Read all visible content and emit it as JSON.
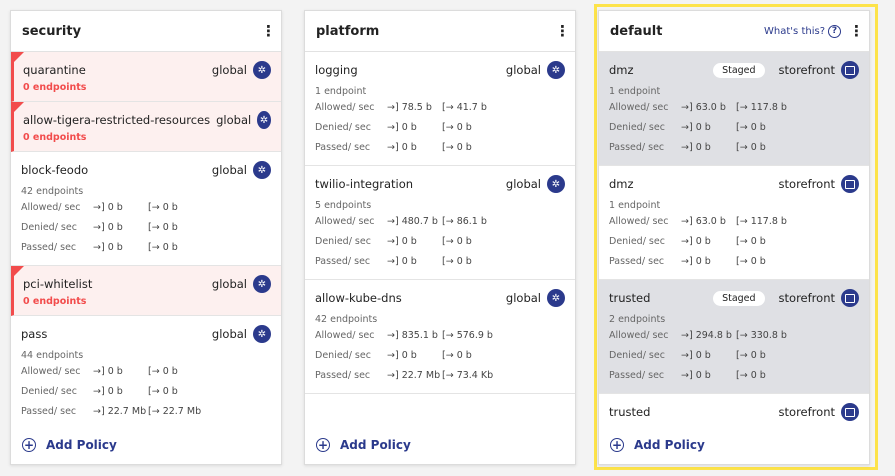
{
  "labels": {
    "allowed": "Allowed/ sec",
    "denied": "Denied/ sec",
    "passed": "Passed/ sec",
    "add_policy": "Add Policy",
    "whats_this": "What's this?",
    "in_arrow": "→]",
    "out_arrow": "[→"
  },
  "colors": {
    "accent": "#2b3a8c",
    "error": "#f24c4c",
    "highlight": "#fde34a",
    "staged_bg": "#dfe0e4"
  },
  "tiers": [
    {
      "title": "security",
      "whats_this": false,
      "policies": [
        {
          "name": "quarantine",
          "scope": "global",
          "icon": "kubernetes-icon",
          "endpoints": "0 endpoints",
          "error": true
        },
        {
          "name": "allow-tigera-restricted-resources",
          "scope": "global",
          "icon": "kubernetes-icon",
          "endpoints": "0 endpoints",
          "error": true
        },
        {
          "name": "block-feodo",
          "scope": "global",
          "icon": "kubernetes-icon",
          "endpoints": "42 endpoints",
          "stats": {
            "allowed": [
              "0 b",
              "0 b"
            ],
            "denied": [
              "0 b",
              "0 b"
            ],
            "passed": [
              "0 b",
              "0 b"
            ]
          }
        },
        {
          "name": "pci-whitelist",
          "scope": "global",
          "icon": "kubernetes-icon",
          "endpoints": "0 endpoints",
          "error": true
        },
        {
          "name": "pass",
          "scope": "global",
          "icon": "kubernetes-icon",
          "endpoints": "44 endpoints",
          "stats": {
            "allowed": [
              "0 b",
              "0 b"
            ],
            "denied": [
              "0 b",
              "0 b"
            ],
            "passed": [
              "22.7 Mb",
              "22.7 Mb"
            ]
          }
        }
      ]
    },
    {
      "title": "platform",
      "whats_this": false,
      "policies": [
        {
          "name": "logging",
          "scope": "global",
          "icon": "kubernetes-icon",
          "endpoints": "1 endpoint",
          "stats": {
            "allowed": [
              "78.5 b",
              "41.7 b"
            ],
            "denied": [
              "0 b",
              "0 b"
            ],
            "passed": [
              "0 b",
              "0 b"
            ]
          }
        },
        {
          "name": "twilio-integration",
          "scope": "global",
          "icon": "kubernetes-icon",
          "endpoints": "5 endpoints",
          "stats": {
            "allowed": [
              "480.7 b",
              "86.1 b"
            ],
            "denied": [
              "0 b",
              "0 b"
            ],
            "passed": [
              "0 b",
              "0 b"
            ]
          }
        },
        {
          "name": "allow-kube-dns",
          "scope": "global",
          "icon": "kubernetes-icon",
          "endpoints": "42 endpoints",
          "stats": {
            "allowed": [
              "835.1 b",
              "576.9 b"
            ],
            "denied": [
              "0 b",
              "0 b"
            ],
            "passed": [
              "22.7 Mb",
              "73.4 Kb"
            ]
          }
        }
      ]
    },
    {
      "title": "default",
      "whats_this": true,
      "policies": [
        {
          "name": "dmz",
          "scope": "storefront",
          "icon": "namespace-icon",
          "staged": "Staged",
          "endpoints": "1 endpoint",
          "stats": {
            "allowed": [
              "63.0 b",
              "117.8 b"
            ],
            "denied": [
              "0 b",
              "0 b"
            ],
            "passed": [
              "0 b",
              "0 b"
            ]
          }
        },
        {
          "name": "dmz",
          "scope": "storefront",
          "icon": "namespace-icon",
          "endpoints": "1 endpoint",
          "stats": {
            "allowed": [
              "63.0 b",
              "117.8 b"
            ],
            "denied": [
              "0 b",
              "0 b"
            ],
            "passed": [
              "0 b",
              "0 b"
            ]
          }
        },
        {
          "name": "trusted",
          "scope": "storefront",
          "icon": "namespace-icon",
          "staged": "Staged",
          "endpoints": "2 endpoints",
          "stats": {
            "allowed": [
              "294.8 b",
              "330.8 b"
            ],
            "denied": [
              "0 b",
              "0 b"
            ],
            "passed": [
              "0 b",
              "0 b"
            ]
          }
        },
        {
          "name": "trusted",
          "scope": "storefront",
          "icon": "namespace-icon"
        }
      ]
    }
  ]
}
